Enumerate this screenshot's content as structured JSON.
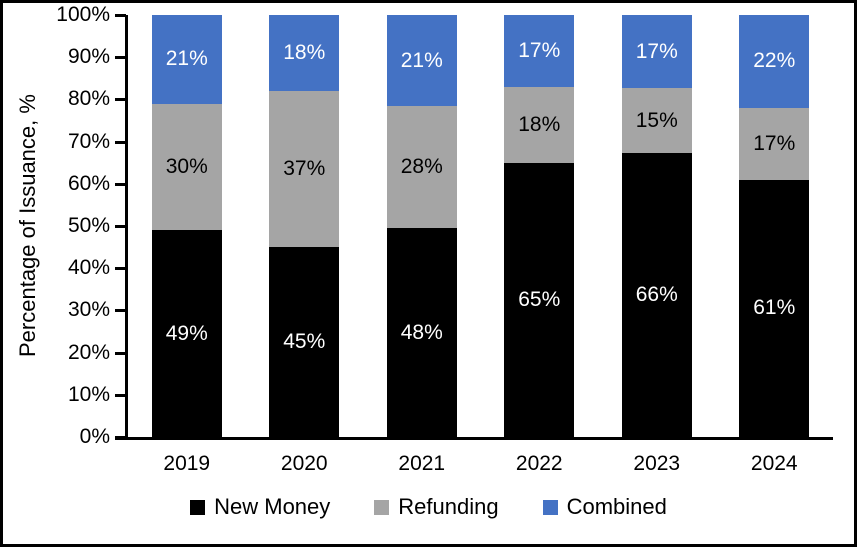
{
  "chart_data": {
    "type": "bar",
    "stacked": true,
    "title": "",
    "xlabel": "",
    "ylabel": "Percentage of Issuance, %",
    "ylim": [
      0,
      100
    ],
    "grid": false,
    "legend_position": "bottom",
    "yticks": [
      "0%",
      "10%",
      "20%",
      "30%",
      "40%",
      "50%",
      "60%",
      "70%",
      "80%",
      "90%",
      "100%"
    ],
    "categories": [
      "2019",
      "2020",
      "2021",
      "2022",
      "2023",
      "2024"
    ],
    "data_label_suffix": "%",
    "series": [
      {
        "name": "New Money",
        "color": "#000000",
        "label_color": "#FFFFFF",
        "values": [
          49,
          45,
          48,
          65,
          66,
          61
        ]
      },
      {
        "name": "Refunding",
        "color": "#A5A5A5",
        "label_color": "#000000",
        "values": [
          30,
          37,
          28,
          18,
          15,
          17
        ]
      },
      {
        "name": "Combined",
        "color": "#4472C4",
        "label_color": "#FFFFFF",
        "values": [
          21,
          18,
          21,
          17,
          17,
          22
        ]
      }
    ],
    "colors": {
      "axis": "#000000",
      "background": "#FFFFFF",
      "frame_border": "#000000"
    }
  }
}
